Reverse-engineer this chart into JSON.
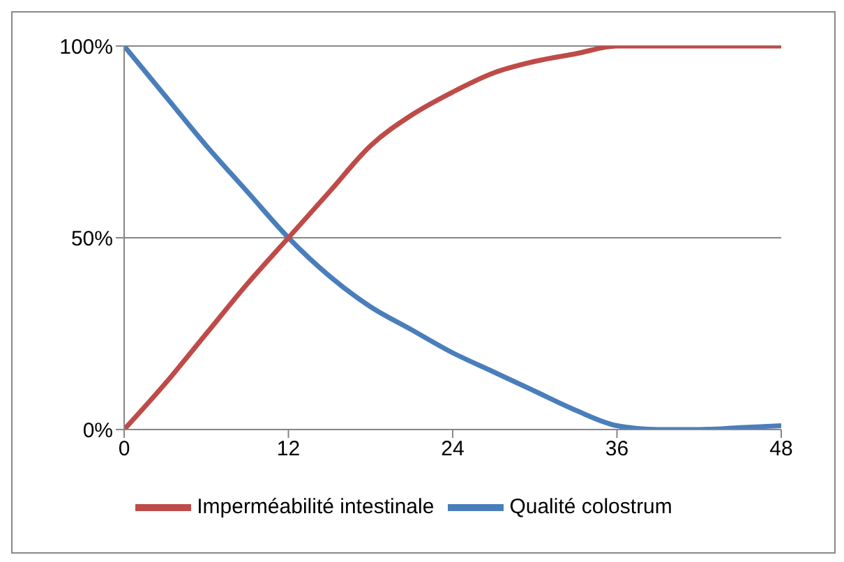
{
  "chart_data": {
    "type": "line",
    "x": [
      0,
      3,
      6,
      9,
      12,
      15,
      18,
      21,
      24,
      27,
      30,
      33,
      36,
      39,
      42,
      45,
      48
    ],
    "series": [
      {
        "name": "Qualité colostrum",
        "color": "#4a7ebb",
        "values": [
          100,
          87,
          74,
          62,
          50,
          40,
          32,
          26,
          20,
          15,
          10,
          5,
          1,
          0,
          0,
          0.5,
          1
        ]
      },
      {
        "name": "Imperméabilité intestinale",
        "color": "#be4b48",
        "values": [
          0,
          12,
          25,
          38,
          50,
          62,
          74,
          82,
          88,
          93,
          96,
          98,
          100,
          100,
          100,
          100,
          100
        ]
      }
    ],
    "xlim": [
      0,
      48
    ],
    "xticks": [
      0,
      12,
      24,
      36,
      48
    ],
    "ylim": [
      0,
      100
    ],
    "yticks": [
      {
        "value": 0,
        "label": "0%"
      },
      {
        "value": 50,
        "label": "50%"
      },
      {
        "value": 100,
        "label": "100%"
      }
    ],
    "grid": "y",
    "legend": "bottom",
    "marker": "none",
    "line_style": "solid"
  }
}
